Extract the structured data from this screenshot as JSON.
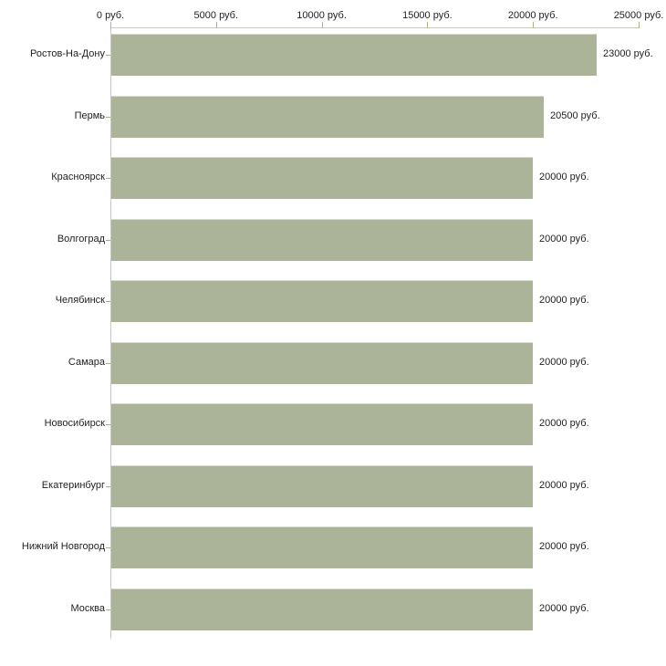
{
  "chart_data": {
    "type": "bar",
    "orientation": "horizontal",
    "title": "",
    "xlabel": "",
    "ylabel": "",
    "grid": false,
    "legend": null,
    "categories": [
      "Ростов-На-Дону",
      "Пермь",
      "Красноярск",
      "Волгоград",
      "Челябинск",
      "Самара",
      "Новосибирск",
      "Екатеринбург",
      "Нижний Новгород",
      "Москва"
    ],
    "values": [
      23000,
      20500,
      20000,
      20000,
      20000,
      20000,
      20000,
      20000,
      20000,
      20000
    ],
    "value_labels": [
      "23000 руб.",
      "20500 руб.",
      "20000 руб.",
      "20000 руб.",
      "20000 руб.",
      "20000 руб.",
      "20000 руб.",
      "20000 руб.",
      "20000 руб.",
      "20000 руб."
    ],
    "unit_suffix": " руб.",
    "xlim": [
      0,
      25000
    ],
    "x_ticks": [
      0,
      5000,
      10000,
      15000,
      20000,
      25000
    ],
    "x_tick_labels": [
      "0 руб.",
      "5000 руб.",
      "10000 руб.",
      "15000 руб.",
      "20000 руб.",
      "25000 руб."
    ],
    "axis_position": "top",
    "colors": {
      "background": "#ffffff",
      "bar": "#abb399",
      "bar_top_edge": "#d8dbce",
      "axis_line": "#c9c9c3",
      "axis_tick": "#b2b289",
      "category_tick": "#aaaa92",
      "text": "#1f1f1f"
    }
  }
}
